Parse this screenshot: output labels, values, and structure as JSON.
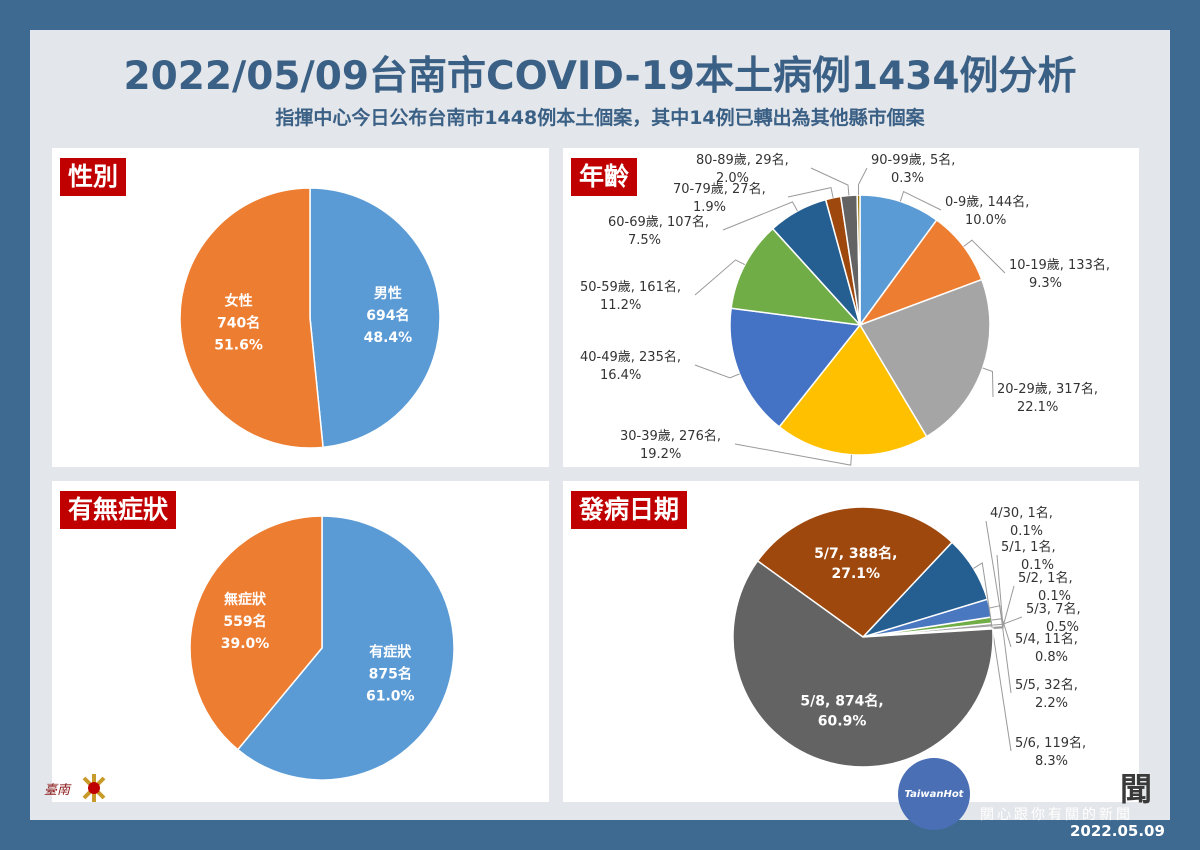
{
  "header": {
    "title": "2022/05/09台南市COVID-19本土病例1434例分析",
    "subtitle": "指揮中心今日公布台南市1448例本土個案，其中14例已轉出為其他縣市個案"
  },
  "chart_data": [
    {
      "type": "pie",
      "title": "性別",
      "categories": [
        "男性",
        "女性"
      ],
      "values": [
        694,
        740
      ],
      "percent_labels": [
        "48.4%",
        "51.6%"
      ],
      "count_labels": [
        "694名",
        "740名"
      ],
      "colors": [
        "#5b9bd5",
        "#ed7d31"
      ]
    },
    {
      "type": "pie",
      "title": "年齡",
      "categories": [
        "0-9歲",
        "10-19歲",
        "20-29歲",
        "30-39歲",
        "40-49歲",
        "50-59歲",
        "60-69歲",
        "70-79歲",
        "80-89歲",
        "90-99歲"
      ],
      "values": [
        144,
        133,
        317,
        276,
        235,
        161,
        107,
        27,
        29,
        5
      ],
      "percent_labels": [
        "10.0%",
        "9.3%",
        "22.1%",
        "19.2%",
        "16.4%",
        "11.2%",
        "7.5%",
        "1.9%",
        "2.0%",
        "0.3%"
      ],
      "count_labels": [
        "144名",
        "133名",
        "317名",
        "276名",
        "235名",
        "161名",
        "107名",
        "27名",
        "29名",
        "5名"
      ],
      "colors": [
        "#5b9bd5",
        "#ed7d31",
        "#a5a5a5",
        "#ffc000",
        "#4472c4",
        "#70ad47",
        "#255e91",
        "#9e480e",
        "#636363",
        "#997300"
      ]
    },
    {
      "type": "pie",
      "title": "有無症狀",
      "categories": [
        "有症狀",
        "無症狀"
      ],
      "values": [
        875,
        559
      ],
      "percent_labels": [
        "61.0%",
        "39.0%"
      ],
      "count_labels": [
        "875名",
        "559名"
      ],
      "colors": [
        "#5b9bd5",
        "#ed7d31"
      ]
    },
    {
      "type": "pie",
      "title": "發病日期",
      "categories": [
        "4/30",
        "5/1",
        "5/2",
        "5/3",
        "5/4",
        "5/5",
        "5/6",
        "5/7",
        "5/8"
      ],
      "values": [
        1,
        1,
        1,
        7,
        11,
        32,
        119,
        388,
        874
      ],
      "percent_labels": [
        "0.1%",
        "0.1%",
        "0.1%",
        "0.5%",
        "0.8%",
        "2.2%",
        "8.3%",
        "27.1%",
        "60.9%"
      ],
      "count_labels": [
        "1名",
        "1名",
        "1名",
        "7名",
        "11名",
        "32名",
        "119名",
        "388名",
        "874名"
      ],
      "colors": [
        "#ffc000",
        "#4472c4",
        "#5b9bd5",
        "#a5a5a5",
        "#70ad47",
        "#4a78c0",
        "#255e91",
        "#9e480e",
        "#636363"
      ]
    }
  ],
  "footer": {
    "badge_text": "TaiwanHot",
    "news_big": "聞",
    "news_small": "關心跟你有關的新聞",
    "date": "2022.05.09"
  }
}
